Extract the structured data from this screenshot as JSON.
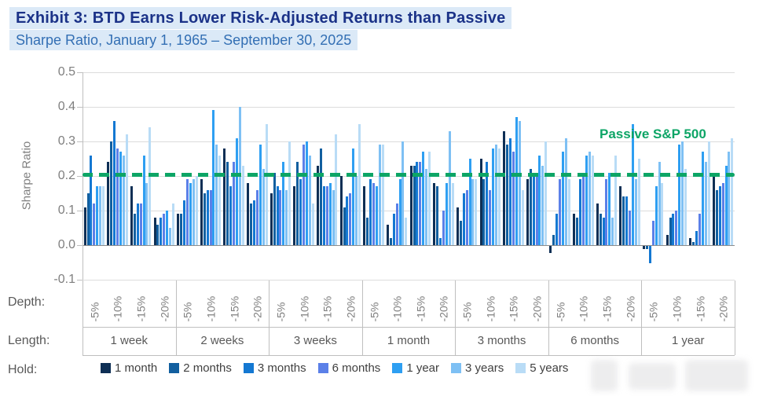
{
  "header": {
    "title": "Exhibit 3: BTD Earns Lower Risk-Adjusted Returns than Passive",
    "subtitle": "Sharpe Ratio, January 1, 1965 – September 30, 2025",
    "title_color": "#1b3288",
    "subtitle_color": "#336fb4",
    "highlight_color": "#dbe9f7"
  },
  "axis_rows": {
    "depth_label": "Depth:",
    "length_label": "Length:",
    "hold_label": "Hold:"
  },
  "chart_data": {
    "type": "bar",
    "title": "Exhibit 3: BTD Earns Lower Risk-Adjusted Returns than Passive",
    "subtitle": "Sharpe Ratio, January 1, 1965 – September 30, 2025",
    "ylabel": "Sharpe Ratio",
    "ylim": [
      -0.1,
      0.5
    ],
    "ytick_labels": [
      "0.5",
      "0.4",
      "0.3",
      "0.2",
      "0.1",
      "0.0",
      "-0.1"
    ],
    "ytick_values": [
      0.5,
      0.4,
      0.3,
      0.2,
      0.1,
      0.0,
      -0.1
    ],
    "grid": true,
    "reference_line": {
      "label": "Passive S&P 500",
      "value": 0.205,
      "color": "#0da566"
    },
    "depth_ticks": [
      "-5%",
      "-10%",
      "-15%",
      "-20%"
    ],
    "hold_series": [
      {
        "label": "1 month",
        "color": "#0e2f55"
      },
      {
        "label": "2 months",
        "color": "#125f9f"
      },
      {
        "label": "3 months",
        "color": "#1478d2"
      },
      {
        "label": "6 months",
        "color": "#5b80e8"
      },
      {
        "label": "1 year",
        "color": "#2e9ff2"
      },
      {
        "label": "3 years",
        "color": "#7ec0f4"
      },
      {
        "label": "5 years",
        "color": "#b9dcf6"
      }
    ],
    "groups": [
      {
        "length": "1 week",
        "clusters": [
          {
            "depth": "-5%",
            "values": [
              0.11,
              0.15,
              0.26,
              0.12,
              0.17,
              0.17,
              0.17
            ]
          },
          {
            "depth": "-10%",
            "values": [
              0.24,
              0.3,
              0.36,
              0.28,
              0.27,
              0.26,
              0.32
            ]
          },
          {
            "depth": "-15%",
            "values": [
              0.17,
              0.09,
              0.12,
              0.12,
              0.26,
              0.18,
              0.34
            ]
          },
          {
            "depth": "-20%",
            "values": [
              0.08,
              0.06,
              0.08,
              0.09,
              0.1,
              0.05,
              0.12
            ]
          }
        ]
      },
      {
        "length": "2 weeks",
        "clusters": [
          {
            "depth": "-5%",
            "values": [
              0.09,
              0.09,
              0.13,
              0.19,
              0.18,
              0.19,
              0.2
            ]
          },
          {
            "depth": "-10%",
            "values": [
              0.19,
              0.15,
              0.16,
              0.16,
              0.39,
              0.29,
              0.26
            ]
          },
          {
            "depth": "-15%",
            "values": [
              0.28,
              0.24,
              0.17,
              0.24,
              0.31,
              0.4,
              0.23
            ]
          },
          {
            "depth": "-20%",
            "values": [
              0.18,
              0.12,
              0.13,
              0.16,
              0.29,
              0.22,
              0.35
            ]
          }
        ]
      },
      {
        "length": "3 weeks",
        "clusters": [
          {
            "depth": "-5%",
            "values": [
              0.15,
              0.21,
              0.17,
              0.16,
              0.24,
              0.16,
              0.3
            ]
          },
          {
            "depth": "-10%",
            "values": [
              0.17,
              0.24,
              0.19,
              0.29,
              0.3,
              0.26,
              0.12
            ]
          },
          {
            "depth": "-15%",
            "values": [
              0.23,
              0.28,
              0.17,
              0.17,
              0.18,
              0.16,
              0.32
            ]
          },
          {
            "depth": "-20%",
            "values": [
              0.2,
              0.11,
              0.14,
              0.15,
              0.28,
              0.2,
              0.35
            ]
          }
        ]
      },
      {
        "length": "1 month",
        "clusters": [
          {
            "depth": "-5%",
            "values": [
              0.17,
              0.08,
              0.19,
              0.18,
              0.17,
              0.29,
              0.29
            ]
          },
          {
            "depth": "-10%",
            "values": [
              0.06,
              0.02,
              0.09,
              0.12,
              0.19,
              0.3,
              0.08
            ]
          },
          {
            "depth": "-15%",
            "values": [
              0.23,
              0.23,
              0.24,
              0.24,
              0.27,
              0.22,
              0.27
            ]
          },
          {
            "depth": "-20%",
            "values": [
              0.18,
              0.17,
              0.02,
              0.1,
              0.18,
              0.33,
              0.18
            ]
          }
        ]
      },
      {
        "length": "3 months",
        "clusters": [
          {
            "depth": "-5%",
            "values": [
              0.11,
              0.07,
              0.15,
              0.16,
              0.25,
              0.19,
              0.19
            ]
          },
          {
            "depth": "-10%",
            "values": [
              0.25,
              0.19,
              0.24,
              0.16,
              0.28,
              0.29,
              0.28
            ]
          },
          {
            "depth": "-15%",
            "values": [
              0.33,
              0.29,
              0.31,
              0.27,
              0.37,
              0.36,
              0.16
            ]
          },
          {
            "depth": "-20%",
            "values": [
              0.19,
              0.22,
              0.21,
              0.21,
              0.26,
              0.23,
              0.3
            ]
          }
        ]
      },
      {
        "length": "6 months",
        "clusters": [
          {
            "depth": "-5%",
            "values": [
              -0.02,
              0.03,
              0.09,
              0.19,
              0.27,
              0.31,
              0.19
            ]
          },
          {
            "depth": "-10%",
            "values": [
              0.09,
              0.08,
              0.19,
              0.2,
              0.26,
              0.27,
              0.26
            ]
          },
          {
            "depth": "-15%",
            "values": [
              0.12,
              0.09,
              0.08,
              0.19,
              0.21,
              0.08,
              0.26
            ]
          },
          {
            "depth": "-20%",
            "values": [
              0.17,
              0.14,
              0.14,
              0.1,
              0.35,
              0.19,
              0.25
            ]
          }
        ]
      },
      {
        "length": "1 year",
        "clusters": [
          {
            "depth": "-5%",
            "values": [
              -0.01,
              -0.01,
              -0.05,
              0.07,
              0.17,
              0.24,
              0.18
            ]
          },
          {
            "depth": "-10%",
            "values": [
              0.03,
              0.08,
              0.09,
              0.1,
              0.29,
              0.3,
              0.22
            ]
          },
          {
            "depth": "-15%",
            "values": [
              0.02,
              0.01,
              0.04,
              0.09,
              0.27,
              0.24,
              0.3
            ]
          },
          {
            "depth": "-20%",
            "values": [
              0.21,
              0.16,
              0.17,
              0.18,
              0.23,
              0.27,
              0.31
            ]
          }
        ]
      }
    ]
  }
}
